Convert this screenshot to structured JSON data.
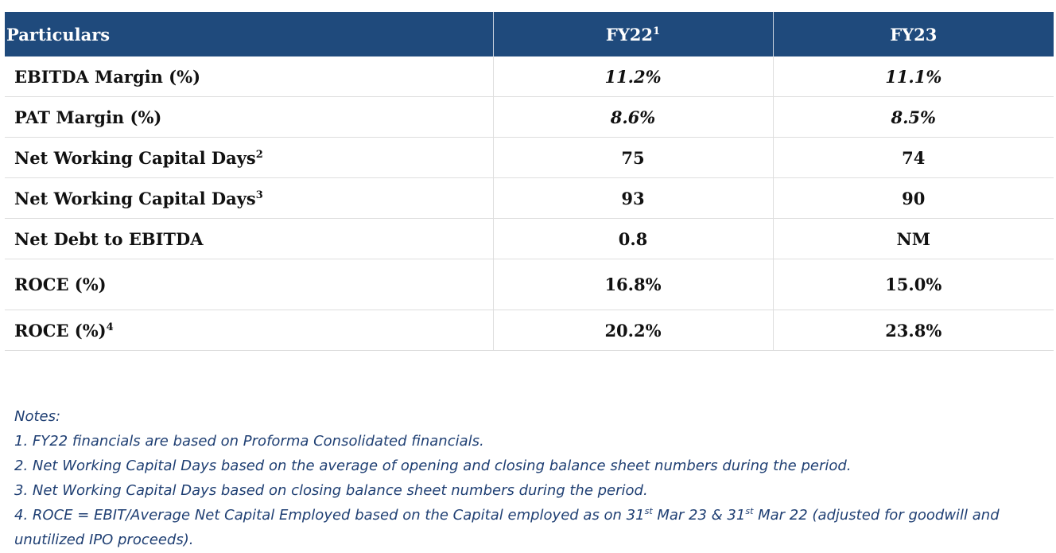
{
  "table": {
    "headers": [
      {
        "text": "Particulars",
        "sup": ""
      },
      {
        "text": "FY22",
        "sup": "1"
      },
      {
        "text": "FY23",
        "sup": ""
      }
    ],
    "rows": [
      {
        "label": "EBITDA Margin (%)",
        "sup": "",
        "fy22": "11.2%",
        "fy23": "11.1%"
      },
      {
        "label": "PAT Margin (%)",
        "sup": "",
        "fy22": "8.6%",
        "fy23": "8.5%"
      },
      {
        "label": "Net Working Capital Days",
        "sup": "2",
        "fy22": "75",
        "fy23": "74"
      },
      {
        "label": "Net Working Capital Days",
        "sup": "3",
        "fy22": "93",
        "fy23": "90"
      },
      {
        "label": "Net Debt to EBITDA",
        "sup": "",
        "fy22": "0.8",
        "fy23": "NM"
      },
      {
        "label": "ROCE (%)",
        "sup": "",
        "fy22": "16.8%",
        "fy23": "15.0%"
      },
      {
        "label": "ROCE (%)",
        "sup": "4",
        "fy22": "20.2%",
        "fy23": "23.8%"
      }
    ]
  },
  "notes": {
    "heading": "Notes:",
    "n1": "1. FY22 financials are based on Proforma Consolidated financials.",
    "n2": "2. Net Working Capital Days based on the average of opening and closing balance sheet numbers during the period.",
    "n3": "3. Net Working Capital Days based on closing balance sheet numbers during the period.",
    "n4": {
      "a": "4. ROCE = EBIT/Average Net Capital Employed based on the Capital employed as on 31",
      "sup1": "st",
      "b": " Mar 23 & 31",
      "sup2": "st",
      "c": " Mar 22 (adjusted for goodwill and unutilized IPO proceeds)."
    }
  }
}
